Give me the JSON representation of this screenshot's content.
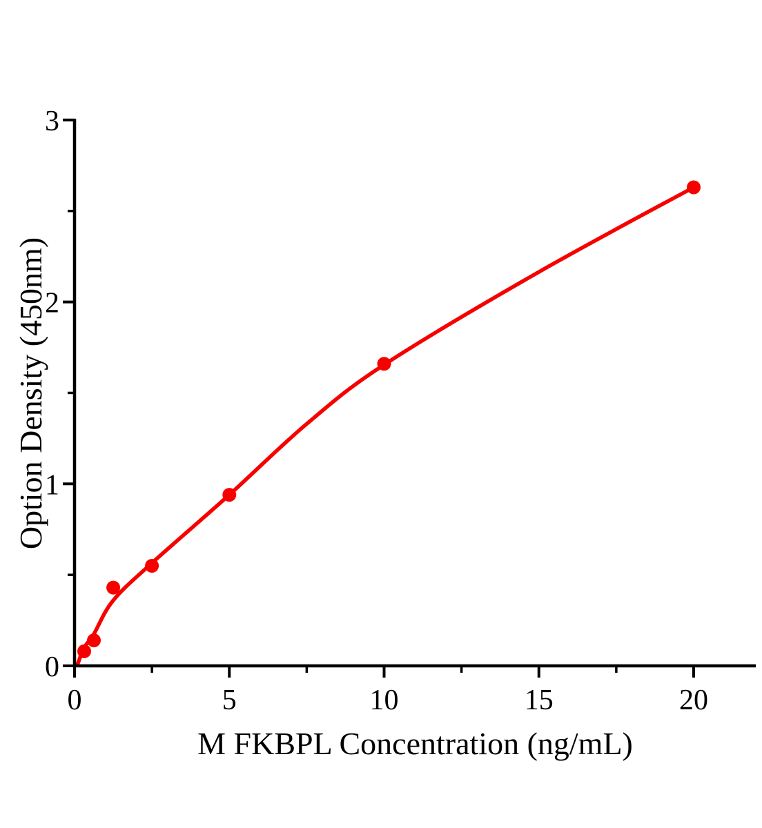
{
  "page": {
    "background_color": "#ffffff"
  },
  "chart_data": {
    "type": "scatter",
    "subtype": "standard-curve-with-fit",
    "title": "",
    "xlabel": "M FKBPL Concentration（ng/mL）",
    "ylabel": "Option Density（450nm）",
    "grid": false,
    "legend": "none",
    "marker_color": "#f70000",
    "line_color": "#f70000",
    "axis_color": "#000000",
    "x_axis": {
      "title": "M FKBPL Concentration（ng/mL）",
      "range": [
        0,
        22
      ],
      "major_ticks": [
        0,
        5,
        10,
        15,
        20
      ],
      "major_tick_labels": [
        "0",
        "5",
        "10",
        "15",
        "20"
      ],
      "minor_ticks": [
        2.5,
        7.5,
        12.5,
        17.5
      ]
    },
    "y_axis": {
      "title": "Option Density（450nm）",
      "range": [
        0,
        3
      ],
      "major_ticks": [
        0,
        1,
        2,
        3
      ],
      "major_tick_labels": [
        "0",
        "1",
        "2",
        "3"
      ],
      "minor_ticks": [
        0.5,
        1.5,
        2.5
      ]
    },
    "series": [
      {
        "name": "standard-points",
        "marker": "filled-circle",
        "x": [
          0.313,
          0.625,
          1.25,
          2.5,
          5,
          10,
          20
        ],
        "y": [
          0.08,
          0.14,
          0.43,
          0.55,
          0.94,
          1.66,
          2.63
        ]
      }
    ],
    "fit_curve": {
      "name": "fitted-standard-curve",
      "points": [
        [
          0.1,
          0.01
        ],
        [
          0.313,
          0.1
        ],
        [
          0.625,
          0.175
        ],
        [
          1.25,
          0.36
        ],
        [
          2.5,
          0.565
        ],
        [
          5,
          0.94
        ],
        [
          7.5,
          1.33
        ],
        [
          10,
          1.655
        ],
        [
          15,
          2.165
        ],
        [
          20,
          2.63
        ]
      ]
    }
  }
}
